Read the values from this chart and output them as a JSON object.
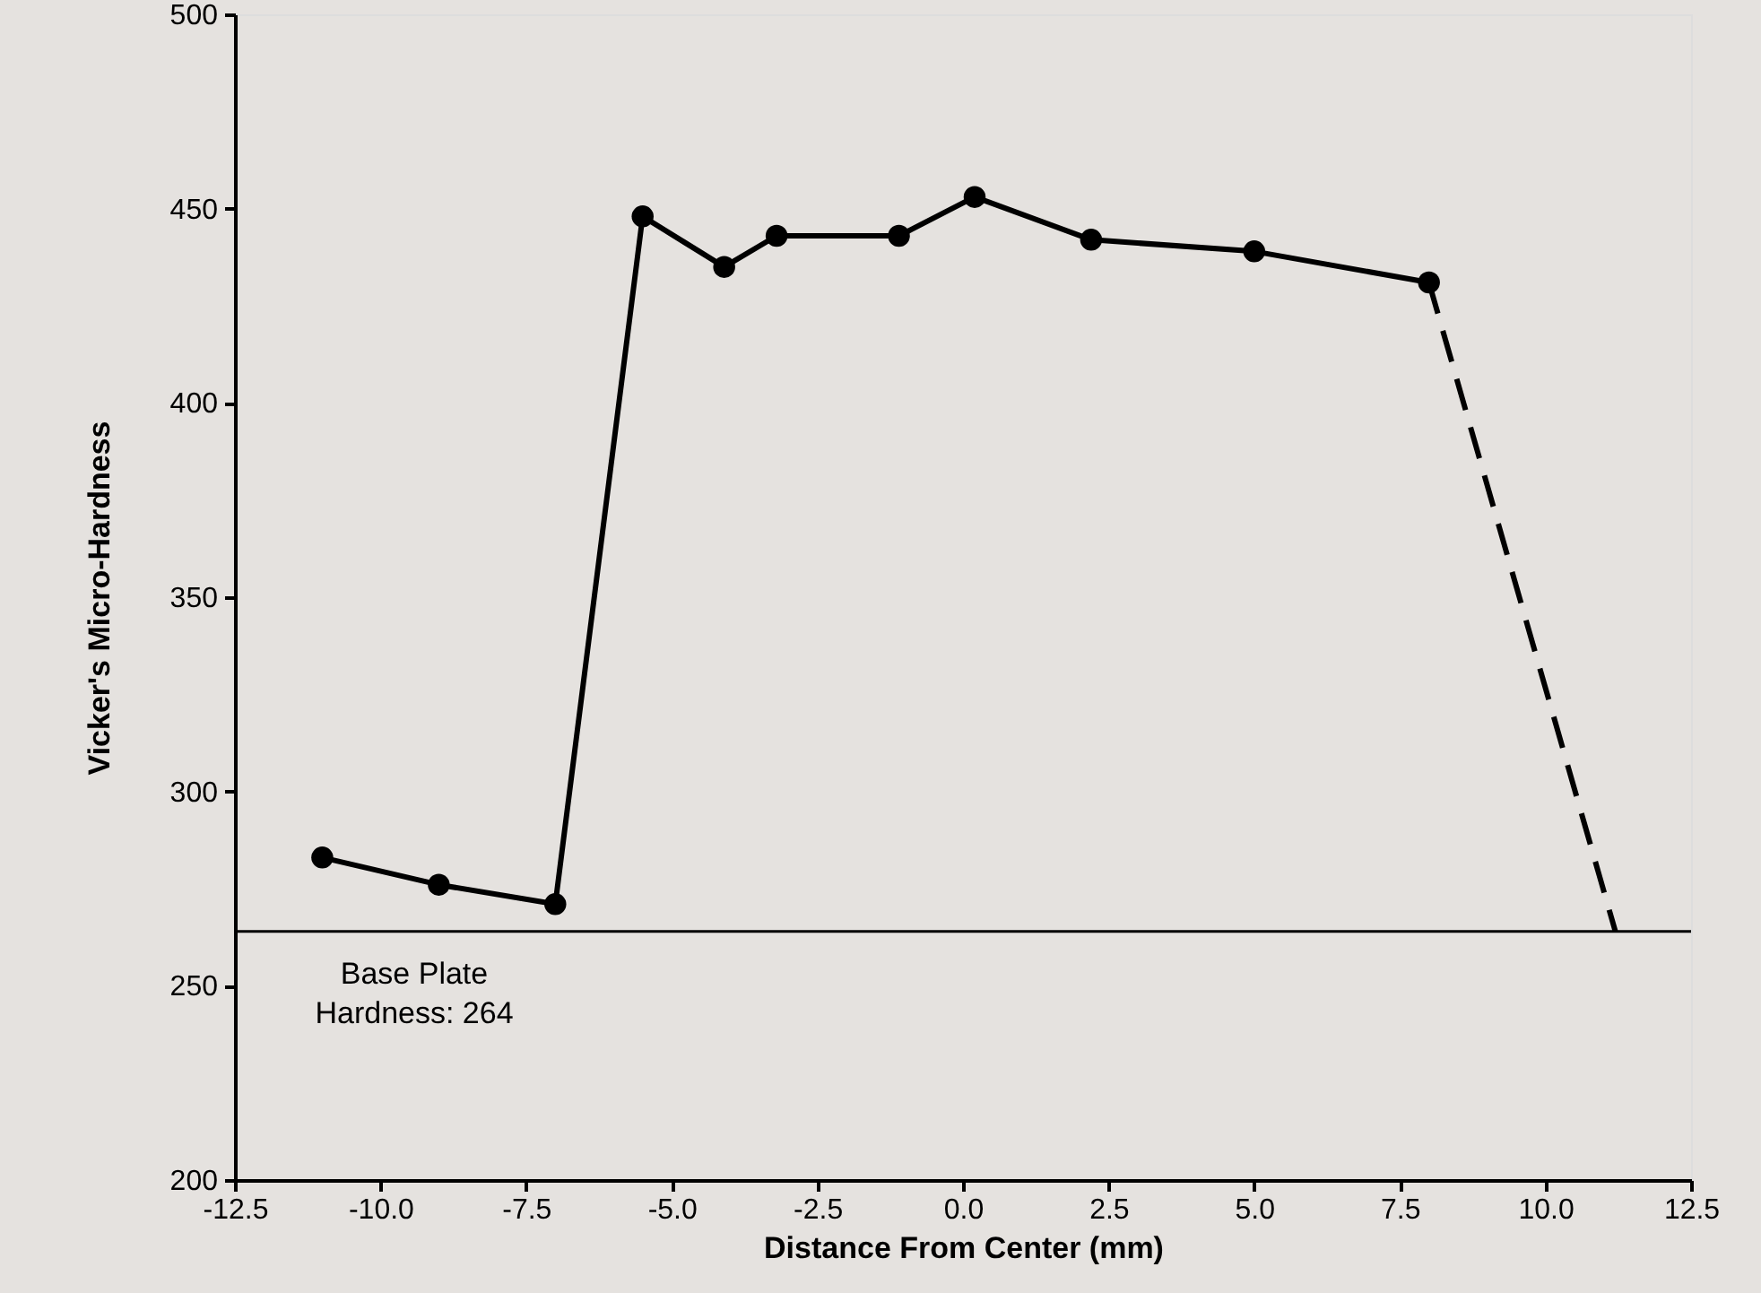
{
  "chart_data": {
    "type": "line",
    "xlabel": "Distance From Center  (mm)",
    "ylabel": "Vicker's Micro-Hardness",
    "xlim": [
      -12.5,
      12.5
    ],
    "xticks": [
      {
        "value": -12.5,
        "label": "-12.5"
      },
      {
        "value": -10,
        "label": "-10.0"
      },
      {
        "value": -7.5,
        "label": "-7.5"
      },
      {
        "value": -5,
        "label": "-5.0"
      },
      {
        "value": -2.5,
        "label": "-2.5"
      },
      {
        "value": 0,
        "label": "0.0"
      },
      {
        "value": 2.5,
        "label": "2.5"
      },
      {
        "value": 5,
        "label": "5.0"
      },
      {
        "value": 7.5,
        "label": "7.5"
      },
      {
        "value": 10,
        "label": "10.0"
      },
      {
        "value": 12.5,
        "label": "12.5"
      }
    ],
    "ylim": [
      200,
      500
    ],
    "yticks": [
      200,
      250,
      300,
      350,
      400,
      450,
      500
    ],
    "grid": false,
    "series": [
      {
        "color": "#000000",
        "marker": "circle",
        "line_style": "solid",
        "x": [
          -11.0,
          -9.0,
          -7.0,
          -5.5,
          -4.1,
          -3.2,
          -1.1,
          0.2,
          2.2,
          5.0,
          8.0
        ],
        "values": [
          283,
          276,
          271,
          448,
          435,
          443,
          443,
          453,
          442,
          439,
          431
        ]
      },
      {
        "color": "#000000",
        "marker": "none",
        "line_style": "dashed",
        "x": [
          8.0,
          11.2
        ],
        "values": [
          431,
          264
        ]
      }
    ],
    "ref_lines": [
      {
        "axis": "y",
        "value": 264,
        "label": "Base Plate\nHardness: 264",
        "color": "#000000",
        "line_style": "solid"
      }
    ]
  }
}
